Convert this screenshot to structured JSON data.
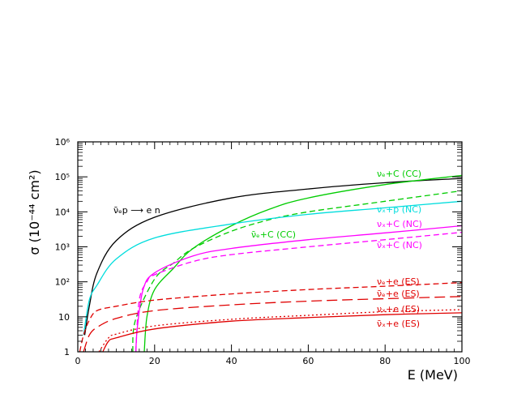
{
  "chart_data": {
    "type": "line",
    "title": "",
    "xlabel": "E (MeV)",
    "ylabel": "σ (10⁻⁴⁴ cm²)",
    "xlim": [
      0,
      100
    ],
    "ylim": [
      1,
      1000000
    ],
    "yscale": "log",
    "grid": false,
    "x_ticks": [
      {
        "value": 0,
        "label": "0"
      },
      {
        "value": 20,
        "label": "20"
      },
      {
        "value": 40,
        "label": "40"
      },
      {
        "value": 60,
        "label": "60"
      },
      {
        "value": 80,
        "label": "80"
      },
      {
        "value": 100,
        "label": "100"
      }
    ],
    "y_ticks": [
      {
        "value": 1,
        "label": "1"
      },
      {
        "value": 10,
        "label": "10"
      },
      {
        "value": 100,
        "label": "10²"
      },
      {
        "value": 1000,
        "label": "10³"
      },
      {
        "value": 10000,
        "label": "10⁴"
      },
      {
        "value": 100000,
        "label": "10⁵"
      },
      {
        "value": 1000000,
        "label": "10⁶"
      }
    ],
    "series": [
      {
        "name": "ν̄ₑp → e n",
        "color": "#000000",
        "dash": "solid",
        "x": [
          1.8,
          3,
          5,
          10,
          20,
          40,
          60,
          80,
          100
        ],
        "y": [
          3,
          20,
          180,
          1500,
          7000,
          25000,
          45000,
          68000,
          90000
        ]
      },
      {
        "name": "νₑ+C (CC)",
        "color": "#00cc00",
        "dash": "solid",
        "x": [
          17.3,
          18,
          20,
          25,
          30,
          40,
          50,
          60,
          80,
          100
        ],
        "y": [
          1,
          10,
          60,
          250,
          900,
          4000,
          12000,
          25000,
          60000,
          110000
        ]
      },
      {
        "name": "ν̄ₑ+C (CC)",
        "color": "#00cc00",
        "dash": "dashed",
        "x": [
          14.3,
          15,
          20,
          25,
          30,
          40,
          50,
          60,
          80,
          100
        ],
        "y": [
          1,
          8,
          120,
          350,
          900,
          2800,
          6000,
          10000,
          20000,
          40000
        ]
      },
      {
        "name": "νₓ+p (NC)",
        "color": "#00dddd",
        "dash": "solid",
        "x": [
          1.5,
          3,
          5,
          10,
          20,
          40,
          60,
          80,
          100
        ],
        "y": [
          3,
          30,
          80,
          450,
          1800,
          4500,
          8500,
          13000,
          20000
        ]
      },
      {
        "name": "νₓ+C (NC)",
        "color": "#ff00ff",
        "dash": "solid",
        "x": [
          15.1,
          15.5,
          17,
          20,
          30,
          40,
          60,
          80,
          100
        ],
        "y": [
          1,
          5,
          60,
          180,
          550,
          900,
          1600,
          2500,
          4000
        ]
      },
      {
        "name": "ν̄ₓ+C (NC)",
        "color": "#ff00ff",
        "dash": "dashed",
        "x": [
          15.1,
          16,
          18,
          20,
          30,
          40,
          60,
          80,
          100
        ],
        "y": [
          1,
          30,
          100,
          160,
          380,
          600,
          1000,
          1600,
          2600
        ]
      },
      {
        "name": "νₑ+e (ES)",
        "color": "#e00000",
        "dash": "dashed",
        "x": [
          0.5,
          1.5,
          3,
          5,
          10,
          20,
          40,
          60,
          80,
          100
        ],
        "y": [
          1,
          3,
          8,
          15,
          20,
          30,
          45,
          60,
          75,
          95
        ]
      },
      {
        "name": "ν̄ₑ+e (ES)",
        "color": "#e00000",
        "dash": "longdash",
        "x": [
          1.5,
          3,
          5,
          10,
          20,
          40,
          60,
          80,
          100
        ],
        "y": [
          1,
          3,
          5,
          9,
          15,
          22,
          28,
          33,
          38
        ]
      },
      {
        "name": "νₓ+e (ES)",
        "color": "#e00000",
        "dash": "dotted",
        "x": [
          5.5,
          8,
          10,
          20,
          40,
          60,
          80,
          100
        ],
        "y": [
          1,
          2.5,
          3.2,
          5.5,
          8.5,
          11,
          14,
          16
        ]
      },
      {
        "name": "ν̄ₓ+e (ES)",
        "color": "#e00000",
        "dash": "solid",
        "x": [
          6.5,
          8,
          10,
          20,
          40,
          60,
          80,
          100
        ],
        "y": [
          1,
          2,
          2.5,
          4.5,
          7.5,
          9.5,
          11.5,
          13
        ]
      }
    ],
    "labels": [
      {
        "series": 0,
        "text": "ν̄ₑp ⟶ e n",
        "color": "#000000"
      },
      {
        "series": 1,
        "text": "νₑ+C (CC)",
        "color": "#00cc00"
      },
      {
        "series": 3,
        "text": "νₓ+p (NC)",
        "color": "#00dddd"
      },
      {
        "series": 4,
        "text": "νₓ+C (NC)",
        "color": "#ff00ff"
      },
      {
        "series": 2,
        "text": "ν̄ₑ+C (CC)",
        "color": "#00cc00"
      },
      {
        "series": 5,
        "text": "ν̄ₓ+C (NC)",
        "color": "#ff00ff"
      },
      {
        "series": 6,
        "text": "νₑ+e (ES)",
        "color": "#e00000"
      },
      {
        "series": 7,
        "text": "ν̄ₑ+e (ES)",
        "color": "#e00000"
      },
      {
        "series": 8,
        "text": "νₓ+e (ES)",
        "color": "#e00000"
      },
      {
        "series": 9,
        "text": "ν̄ₓ+e (ES)",
        "color": "#e00000"
      }
    ]
  }
}
